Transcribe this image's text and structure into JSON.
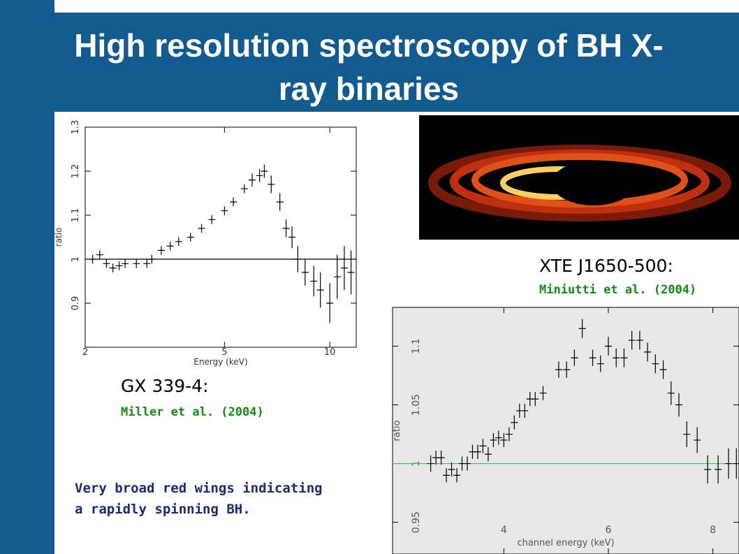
{
  "title": "High resolution spectroscopy of BH X-ray binaries",
  "chart_data": [
    {
      "type": "scatter",
      "xlabel": "Energy (keV)",
      "ylabel": "ratio",
      "xscale": "log",
      "xlim": [
        2,
        11.9
      ],
      "ylim": [
        0.8,
        1.3
      ],
      "xticks": [
        2,
        5,
        10
      ],
      "yticks": [
        0.9,
        1,
        1.1,
        1.2,
        1.3
      ],
      "hline": {
        "y": 1,
        "color": "#000000"
      },
      "background": "#ffffff",
      "x": [
        2.1,
        2.2,
        2.3,
        2.4,
        2.5,
        2.6,
        2.8,
        3.0,
        3.1,
        3.3,
        3.5,
        3.7,
        4.0,
        4.3,
        4.6,
        5.0,
        5.3,
        5.7,
        6.0,
        6.3,
        6.5,
        6.8,
        7.2,
        7.5,
        7.8,
        8.1,
        8.5,
        9.0,
        9.4,
        10.0,
        10.5,
        11.0,
        11.5
      ],
      "series": [
        {
          "color": "#000000",
          "values": [
            1.0,
            1.01,
            0.99,
            0.98,
            0.985,
            0.99,
            0.99,
            0.99,
            1.0,
            1.02,
            1.03,
            1.04,
            1.05,
            1.07,
            1.09,
            1.11,
            1.13,
            1.16,
            1.18,
            1.19,
            1.2,
            1.17,
            1.13,
            1.07,
            1.05,
            1.0,
            0.97,
            0.95,
            0.93,
            0.9,
            0.96,
            0.98,
            0.97
          ],
          "errors": [
            0.01,
            0.01,
            0.01,
            0.01,
            0.01,
            0.01,
            0.01,
            0.01,
            0.01,
            0.01,
            0.01,
            0.01,
            0.01,
            0.01,
            0.01,
            0.01,
            0.01,
            0.01,
            0.015,
            0.015,
            0.015,
            0.02,
            0.02,
            0.02,
            0.025,
            0.03,
            0.03,
            0.035,
            0.04,
            0.045,
            0.05,
            0.05,
            0.05
          ]
        }
      ]
    },
    {
      "type": "scatter",
      "xlabel": "channel energy (keV)",
      "ylabel": "ratio",
      "xlim": [
        1.87,
        8.5
      ],
      "ylim": [
        0.923,
        1.133
      ],
      "xticks": [
        4,
        6,
        8
      ],
      "yticks": [
        0.95,
        1,
        1.05,
        1.1
      ],
      "hline": {
        "y": 1,
        "color": "#33cc33"
      },
      "background": "#e8e8e8",
      "x": [
        2.6,
        2.7,
        2.8,
        2.9,
        3.0,
        3.1,
        3.2,
        3.3,
        3.4,
        3.5,
        3.6,
        3.7,
        3.8,
        3.9,
        4.0,
        4.1,
        4.2,
        4.3,
        4.4,
        4.5,
        4.6,
        4.75,
        5.05,
        5.2,
        5.35,
        5.5,
        5.7,
        5.85,
        6.0,
        6.15,
        6.3,
        6.45,
        6.6,
        6.75,
        6.9,
        7.05,
        7.2,
        7.35,
        7.5,
        7.7,
        7.9,
        8.1,
        8.3,
        8.45
      ],
      "series": [
        {
          "color": "#000000",
          "values": [
            1.0,
            1.005,
            1.005,
            0.99,
            0.995,
            0.99,
            1.0,
            1.0,
            1.01,
            1.01,
            1.015,
            1.008,
            1.02,
            1.022,
            1.02,
            1.025,
            1.035,
            1.045,
            1.045,
            1.055,
            1.055,
            1.06,
            1.08,
            1.08,
            1.09,
            1.115,
            1.09,
            1.085,
            1.1,
            1.09,
            1.09,
            1.105,
            1.105,
            1.095,
            1.085,
            1.08,
            1.06,
            1.05,
            1.025,
            1.02,
            0.995,
            0.995,
            1.0,
            1.0
          ],
          "errors": [
            0.007,
            0.006,
            0.006,
            0.006,
            0.006,
            0.006,
            0.006,
            0.006,
            0.006,
            0.006,
            0.006,
            0.006,
            0.006,
            0.006,
            0.006,
            0.006,
            0.006,
            0.006,
            0.006,
            0.006,
            0.006,
            0.006,
            0.007,
            0.007,
            0.007,
            0.008,
            0.007,
            0.007,
            0.008,
            0.008,
            0.008,
            0.008,
            0.008,
            0.008,
            0.008,
            0.008,
            0.01,
            0.01,
            0.011,
            0.011,
            0.012,
            0.012,
            0.013,
            0.013
          ]
        }
      ]
    }
  ],
  "labels": {
    "xte": "XTE J1650-500:",
    "xte_ref": "Miniutti et al. (2004)",
    "gx": "GX 339-4:",
    "gx_ref": "Miller et al. (2004)",
    "note": [
      "Very broad red wings indicating",
      "a rapidly spinning BH."
    ]
  }
}
